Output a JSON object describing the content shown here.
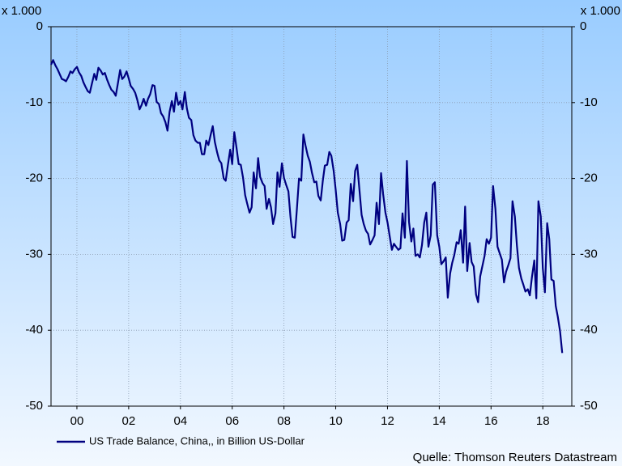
{
  "chart_data": {
    "type": "line",
    "y_unit_label": "x 1.000",
    "legend_label": "US Trade Balance, China,, in Billion US-Dollar",
    "source": "Quelle: Thomson Reuters Datastream",
    "xlim": [
      1999,
      2019.12
    ],
    "xticks": [
      {
        "value": 2000,
        "label": "00"
      },
      {
        "value": 2002,
        "label": "02"
      },
      {
        "value": 2004,
        "label": "04"
      },
      {
        "value": 2006,
        "label": "06"
      },
      {
        "value": 2008,
        "label": "08"
      },
      {
        "value": 2010,
        "label": "10"
      },
      {
        "value": 2012,
        "label": "12"
      },
      {
        "value": 2014,
        "label": "14"
      },
      {
        "value": 2016,
        "label": "16"
      },
      {
        "value": 2018,
        "label": "18"
      }
    ],
    "ylim": [
      -50,
      0
    ],
    "yticks": [
      -50,
      -40,
      -30,
      -20,
      -10,
      0
    ],
    "grid": true,
    "color": "#000080",
    "x": [
      1999.0,
      1999.08,
      1999.17,
      1999.25,
      1999.33,
      1999.42,
      1999.5,
      1999.58,
      1999.67,
      1999.75,
      1999.83,
      1999.92,
      2000.0,
      2000.08,
      2000.17,
      2000.25,
      2000.33,
      2000.42,
      2000.5,
      2000.58,
      2000.67,
      2000.75,
      2000.83,
      2000.92,
      2001.0,
      2001.08,
      2001.17,
      2001.25,
      2001.33,
      2001.42,
      2001.5,
      2001.58,
      2001.67,
      2001.75,
      2001.83,
      2001.92,
      2002.0,
      2002.08,
      2002.17,
      2002.25,
      2002.33,
      2002.42,
      2002.5,
      2002.58,
      2002.67,
      2002.75,
      2002.83,
      2002.92,
      2003.0,
      2003.08,
      2003.17,
      2003.25,
      2003.33,
      2003.42,
      2003.5,
      2003.58,
      2003.67,
      2003.75,
      2003.83,
      2003.92,
      2004.0,
      2004.08,
      2004.17,
      2004.25,
      2004.33,
      2004.42,
      2004.5,
      2004.58,
      2004.67,
      2004.75,
      2004.83,
      2004.92,
      2005.0,
      2005.08,
      2005.17,
      2005.25,
      2005.33,
      2005.42,
      2005.5,
      2005.58,
      2005.67,
      2005.75,
      2005.83,
      2005.92,
      2006.0,
      2006.08,
      2006.17,
      2006.25,
      2006.33,
      2006.42,
      2006.5,
      2006.58,
      2006.67,
      2006.75,
      2006.83,
      2006.92,
      2007.0,
      2007.08,
      2007.17,
      2007.25,
      2007.33,
      2007.42,
      2007.5,
      2007.58,
      2007.67,
      2007.75,
      2007.83,
      2007.92,
      2008.0,
      2008.08,
      2008.17,
      2008.25,
      2008.33,
      2008.42,
      2008.5,
      2008.58,
      2008.67,
      2008.75,
      2008.83,
      2008.92,
      2009.0,
      2009.08,
      2009.17,
      2009.25,
      2009.33,
      2009.42,
      2009.5,
      2009.58,
      2009.67,
      2009.75,
      2009.83,
      2009.92,
      2010.0,
      2010.08,
      2010.17,
      2010.25,
      2010.33,
      2010.42,
      2010.5,
      2010.58,
      2010.67,
      2010.75,
      2010.83,
      2010.92,
      2011.0,
      2011.08,
      2011.17,
      2011.25,
      2011.33,
      2011.42,
      2011.5,
      2011.58,
      2011.67,
      2011.75,
      2011.83,
      2011.92,
      2012.0,
      2012.08,
      2012.17,
      2012.25,
      2012.33,
      2012.42,
      2012.5,
      2012.58,
      2012.67,
      2012.75,
      2012.83,
      2012.92,
      2013.0,
      2013.08,
      2013.17,
      2013.25,
      2013.33,
      2013.42,
      2013.5,
      2013.58,
      2013.67,
      2013.75,
      2013.83,
      2013.92,
      2014.0,
      2014.08,
      2014.17,
      2014.25,
      2014.33,
      2014.42,
      2014.5,
      2014.58,
      2014.67,
      2014.75,
      2014.83,
      2014.92,
      2015.0,
      2015.08,
      2015.17,
      2015.25,
      2015.33,
      2015.42,
      2015.5,
      2015.58,
      2015.67,
      2015.75,
      2015.83,
      2015.92,
      2016.0,
      2016.08,
      2016.17,
      2016.25,
      2016.33,
      2016.42,
      2016.5,
      2016.58,
      2016.67,
      2016.75,
      2016.83,
      2016.92,
      2017.0,
      2017.08,
      2017.17,
      2017.25,
      2017.33,
      2017.42,
      2017.5,
      2017.58,
      2017.67,
      2017.75,
      2017.83,
      2017.92,
      2018.0,
      2018.08,
      2018.17,
      2018.25,
      2018.33,
      2018.42,
      2018.5,
      2018.58,
      2018.67,
      2018.75
    ],
    "values": [
      -5.0,
      -4.4,
      -5.1,
      -5.6,
      -6.2,
      -6.9,
      -7.0,
      -7.2,
      -6.6,
      -5.9,
      -6.1,
      -5.6,
      -5.3,
      -6.0,
      -6.5,
      -7.3,
      -7.9,
      -8.5,
      -8.7,
      -7.5,
      -6.2,
      -7.0,
      -5.4,
      -5.8,
      -6.3,
      -6.1,
      -7.0,
      -7.7,
      -8.3,
      -8.6,
      -9.1,
      -7.5,
      -5.7,
      -6.9,
      -6.6,
      -5.9,
      -6.8,
      -7.8,
      -8.2,
      -8.7,
      -9.6,
      -10.9,
      -10.3,
      -9.5,
      -10.4,
      -9.5,
      -8.9,
      -7.7,
      -7.8,
      -9.9,
      -10.2,
      -11.4,
      -11.8,
      -12.6,
      -13.7,
      -11.2,
      -9.8,
      -11.2,
      -8.7,
      -10.3,
      -9.8,
      -10.9,
      -8.6,
      -10.8,
      -12.0,
      -12.3,
      -14.3,
      -15.0,
      -15.3,
      -15.3,
      -16.8,
      -16.8,
      -15.0,
      -15.6,
      -14.2,
      -13.1,
      -15.2,
      -16.6,
      -17.6,
      -18.0,
      -20.0,
      -20.3,
      -18.3,
      -16.2,
      -18.1,
      -13.9,
      -16.0,
      -18.1,
      -18.2,
      -19.9,
      -22.2,
      -23.3,
      -24.5,
      -23.8,
      -19.2,
      -21.3,
      -17.3,
      -19.8,
      -20.6,
      -21.0,
      -24.0,
      -22.7,
      -23.8,
      -26.0,
      -24.6,
      -19.2,
      -21.1,
      -18.0,
      -19.9,
      -20.8,
      -21.7,
      -25.0,
      -27.7,
      -27.8,
      -24.0,
      -20.0,
      -20.3,
      -14.2,
      -15.6,
      -17.0,
      -17.8,
      -19.2,
      -20.5,
      -20.4,
      -22.3,
      -22.9,
      -20.3,
      -18.3,
      -18.2,
      -16.5,
      -17.0,
      -19.0,
      -21.5,
      -24.5,
      -26.0,
      -28.2,
      -28.1,
      -25.8,
      -25.5,
      -20.7,
      -23.0,
      -19.0,
      -18.2,
      -21.6,
      -24.8,
      -26.0,
      -26.9,
      -27.3,
      -28.7,
      -28.1,
      -27.5,
      -23.2,
      -26.0,
      -19.3,
      -22.0,
      -24.5,
      -25.8,
      -27.5,
      -29.4,
      -28.6,
      -29.0,
      -29.4,
      -29.2,
      -24.6,
      -27.8,
      -17.7,
      -25.7,
      -28.3,
      -26.6,
      -30.2,
      -30.0,
      -30.4,
      -28.8,
      -25.8,
      -24.5,
      -29.0,
      -27.5,
      -20.8,
      -20.5,
      -27.5,
      -29.0,
      -31.3,
      -30.9,
      -30.4,
      -35.7,
      -32.5,
      -31.1,
      -30.1,
      -28.4,
      -28.6,
      -26.8,
      -31.1,
      -23.7,
      -32.2,
      -28.5,
      -31.0,
      -31.6,
      -35.3,
      -36.3,
      -32.9,
      -31.5,
      -30.2,
      -28.0,
      -28.6,
      -27.8,
      -21.0,
      -24.0,
      -29.0,
      -29.8,
      -30.7,
      -33.7,
      -32.3,
      -31.4,
      -30.5,
      -23.0,
      -25.0,
      -28.8,
      -31.8,
      -33.2,
      -34.0,
      -34.9,
      -34.6,
      -35.4,
      -33.0,
      -30.8,
      -35.8,
      -23.0,
      -25.0,
      -31.8,
      -35.0,
      -25.9,
      -28.0,
      -33.3,
      -33.5,
      -36.8,
      -38.2,
      -40.2,
      -43.0
    ]
  }
}
